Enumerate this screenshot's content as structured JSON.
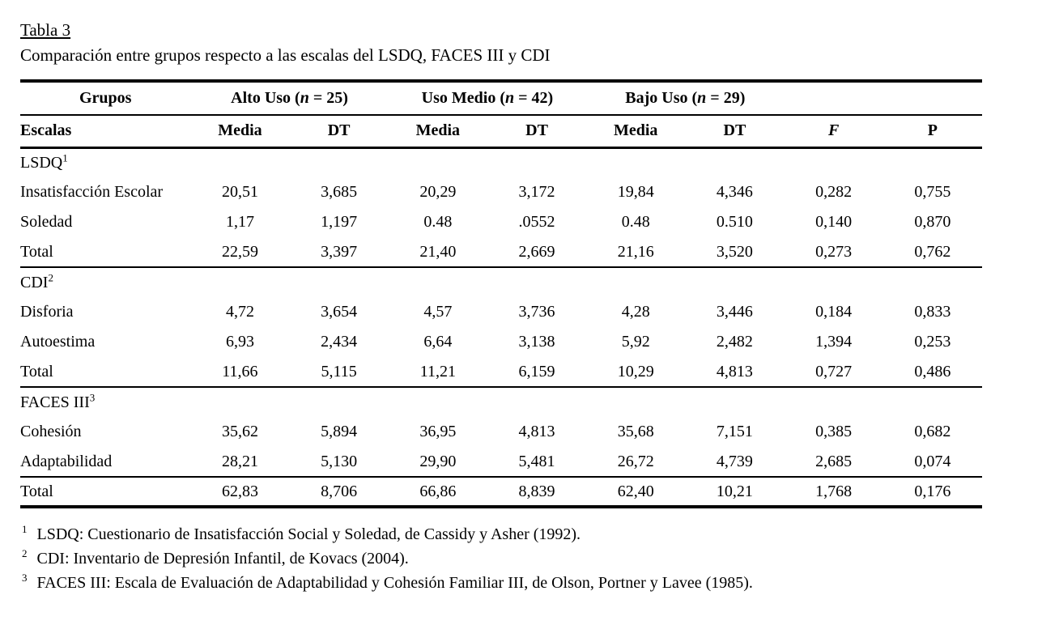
{
  "page": {
    "title": "Tabla 3",
    "caption": "Comparación entre grupos respecto a las escalas del LSDQ, FACES III y CDI"
  },
  "table": {
    "corner_header": "Grupos",
    "row_header": "Escalas",
    "groups": [
      {
        "label": "Alto Uso",
        "n_symbol": "n",
        "n_value": "25"
      },
      {
        "label": "Uso Medio",
        "n_symbol": "n",
        "n_value": "42"
      },
      {
        "label": "Bajo Uso",
        "n_symbol": "n",
        "n_value": "29"
      }
    ],
    "stat_headers": {
      "media": "Media",
      "dt": "DT",
      "f": "F",
      "p": "P"
    },
    "sections": [
      {
        "label": "LSDQ",
        "sup": "1",
        "rows": [
          {
            "label": "Insatisfacción Escolar",
            "values": [
              "20,51",
              "3,685",
              "20,29",
              "3,172",
              "19,84",
              "4,346",
              "0,282",
              "0,755"
            ]
          },
          {
            "label": "Soledad",
            "values": [
              "1,17",
              "1,197",
              "0.48",
              ".0552",
              "0.48",
              "0.510",
              "0,140",
              "0,870"
            ]
          },
          {
            "label": "Total",
            "values": [
              "22,59",
              "3,397",
              "21,40",
              "2,669",
              "21,16",
              "3,520",
              "0,273",
              "0,762"
            ]
          }
        ]
      },
      {
        "label": "CDI",
        "sup": "2",
        "rows": [
          {
            "label": "Disforia",
            "values": [
              "4,72",
              "3,654",
              "4,57",
              "3,736",
              "4,28",
              "3,446",
              "0,184",
              "0,833"
            ]
          },
          {
            "label": "Autoestima",
            "values": [
              "6,93",
              "2,434",
              "6,64",
              "3,138",
              "5,92",
              "2,482",
              "1,394",
              "0,253"
            ]
          },
          {
            "label": "Total",
            "values": [
              "11,66",
              "5,115",
              "11,21",
              "6,159",
              "10,29",
              "4,813",
              "0,727",
              "0,486"
            ]
          }
        ]
      },
      {
        "label": "FACES III",
        "sup": "3",
        "rows": [
          {
            "label": "Cohesión",
            "values": [
              "35,62",
              "5,894",
              "36,95",
              "4,813",
              "35,68",
              "7,151",
              "0,385",
              "0,682"
            ]
          },
          {
            "label": "Adaptabilidad",
            "values": [
              "28,21",
              "5,130",
              "29,90",
              "5,481",
              "26,72",
              "4,739",
              "2,685",
              "0,074"
            ]
          },
          {
            "label": "Total",
            "values": [
              "62,83",
              "8,706",
              "66,86",
              "8,839",
              "62,40",
              "10,21",
              "1,768",
              "0,176"
            ]
          }
        ]
      }
    ]
  },
  "footnotes": [
    {
      "marker": "1",
      "text": "LSDQ: Cuestionario de Insatisfacción Social y Soledad, de Cassidy y Asher (1992)."
    },
    {
      "marker": "2",
      "text": "CDI: Inventario de Depresión Infantil, de Kovacs (2004)."
    },
    {
      "marker": "3",
      "text": "FACES III: Escala de Evaluación de Adaptabilidad y Cohesión Familiar III, de Olson, Portner y Lavee (1985)."
    }
  ],
  "colors": {
    "text": "#000000",
    "background": "#ffffff",
    "rule": "#000000"
  }
}
